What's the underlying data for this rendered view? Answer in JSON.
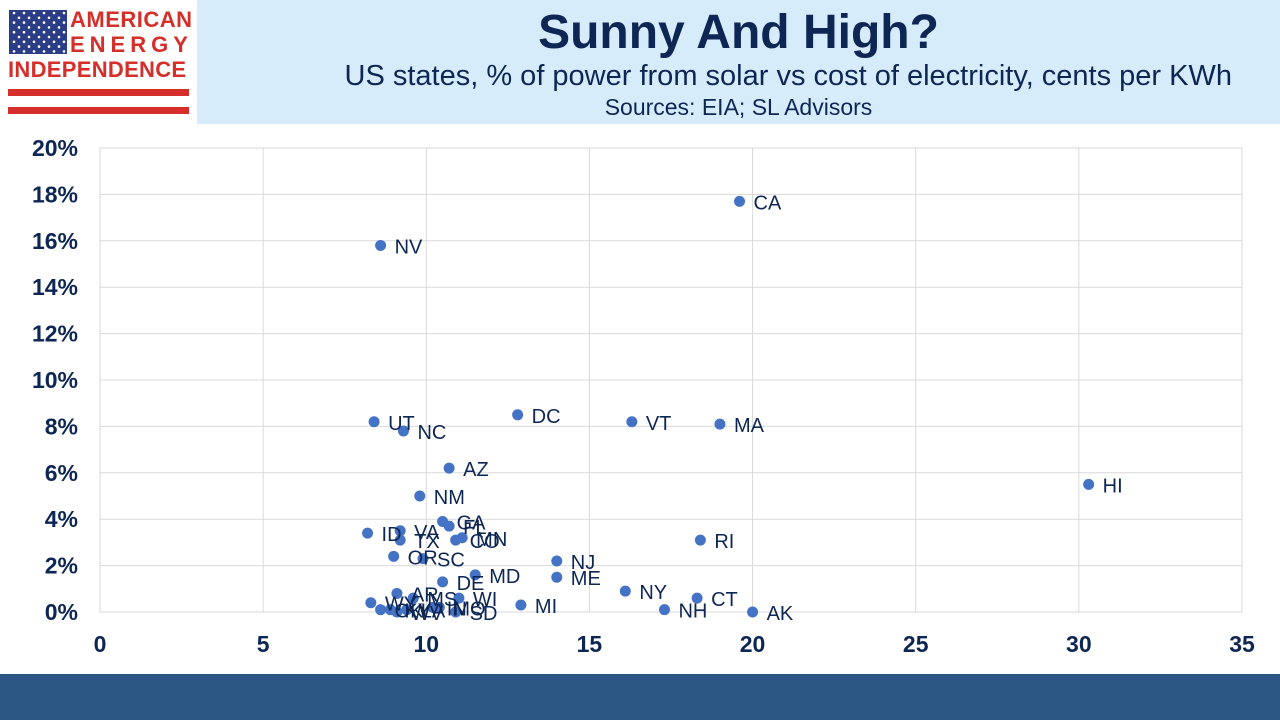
{
  "logo": {
    "line1": "AMERICAN",
    "line2": "ENERGY",
    "line3": "INDEPENDENCE",
    "brand_red": "#d42f2a",
    "brand_blue": "#2b3d86"
  },
  "colors": {
    "header_band": "#d6ecfb",
    "footer": "#2b5583",
    "text_navy": "#0d2654",
    "marker": "#4472c4",
    "grid": "#d9d9d9"
  },
  "chart_data": {
    "type": "scatter",
    "title": "Sunny And High?",
    "subtitle": "US states, % of power from solar vs cost of electricity, cents per KWh",
    "sources": "Sources: EIA; SL Advisors",
    "xlabel": "",
    "ylabel": "",
    "xlim": [
      0,
      35
    ],
    "ylim": [
      0,
      0.2
    ],
    "x_ticks": [
      0,
      5,
      10,
      15,
      20,
      25,
      30,
      35
    ],
    "x_tick_labels": [
      "0",
      "5",
      "10",
      "15",
      "20",
      "25",
      "30",
      "35"
    ],
    "y_ticks": [
      0,
      0.02,
      0.04,
      0.06,
      0.08,
      0.1,
      0.12,
      0.14,
      0.16,
      0.18,
      0.2
    ],
    "y_tick_labels": [
      "0%",
      "2%",
      "4%",
      "6%",
      "8%",
      "10%",
      "12%",
      "14%",
      "16%",
      "18%",
      "20%"
    ],
    "grid": true,
    "legend": false,
    "points": [
      {
        "label": "CA",
        "x": 19.6,
        "y": 0.177
      },
      {
        "label": "NV",
        "x": 8.6,
        "y": 0.158
      },
      {
        "label": "DC",
        "x": 12.8,
        "y": 0.085
      },
      {
        "label": "VT",
        "x": 16.3,
        "y": 0.082
      },
      {
        "label": "MA",
        "x": 19.0,
        "y": 0.081
      },
      {
        "label": "UT",
        "x": 8.4,
        "y": 0.082
      },
      {
        "label": "NC",
        "x": 9.3,
        "y": 0.078
      },
      {
        "label": "AZ",
        "x": 10.7,
        "y": 0.062
      },
      {
        "label": "HI",
        "x": 30.3,
        "y": 0.055
      },
      {
        "label": "NM",
        "x": 9.8,
        "y": 0.05
      },
      {
        "label": "GA",
        "x": 10.5,
        "y": 0.039
      },
      {
        "label": "FL",
        "x": 10.7,
        "y": 0.037
      },
      {
        "label": "VA",
        "x": 9.2,
        "y": 0.035
      },
      {
        "label": "ID",
        "x": 8.2,
        "y": 0.034
      },
      {
        "label": "MN",
        "x": 11.1,
        "y": 0.032
      },
      {
        "label": "TX",
        "x": 9.2,
        "y": 0.031
      },
      {
        "label": "CO",
        "x": 10.9,
        "y": 0.031
      },
      {
        "label": "RI",
        "x": 18.4,
        "y": 0.031
      },
      {
        "label": "OR",
        "x": 9.0,
        "y": 0.024
      },
      {
        "label": "SC",
        "x": 9.9,
        "y": 0.023
      },
      {
        "label": "NJ",
        "x": 14.0,
        "y": 0.022
      },
      {
        "label": "MD",
        "x": 11.5,
        "y": 0.016
      },
      {
        "label": "ME",
        "x": 14.0,
        "y": 0.015
      },
      {
        "label": "DE",
        "x": 10.5,
        "y": 0.013
      },
      {
        "label": "NY",
        "x": 16.1,
        "y": 0.009
      },
      {
        "label": "AR",
        "x": 9.1,
        "y": 0.008
      },
      {
        "label": "MS",
        "x": 9.6,
        "y": 0.006
      },
      {
        "label": "CT",
        "x": 18.3,
        "y": 0.006
      },
      {
        "label": "WI",
        "x": 11.0,
        "y": 0.006
      },
      {
        "label": "WY",
        "x": 8.3,
        "y": 0.004
      },
      {
        "label": "MI",
        "x": 12.9,
        "y": 0.003
      },
      {
        "label": "NH",
        "x": 17.3,
        "y": 0.001
      },
      {
        "label": "AK",
        "x": 20.0,
        "y": 0.0
      },
      {
        "label": "OK",
        "x": 8.6,
        "y": 0.001
      },
      {
        "label": "KY",
        "x": 8.9,
        "y": 0.001
      },
      {
        "label": "WV",
        "x": 9.1,
        "y": 0.0
      },
      {
        "label": "LA",
        "x": 9.4,
        "y": 0.001
      },
      {
        "label": "IN",
        "x": 10.2,
        "y": 0.002
      },
      {
        "label": "MO",
        "x": 10.4,
        "y": 0.002
      },
      {
        "label": "SD",
        "x": 10.9,
        "y": 0.0
      }
    ]
  }
}
